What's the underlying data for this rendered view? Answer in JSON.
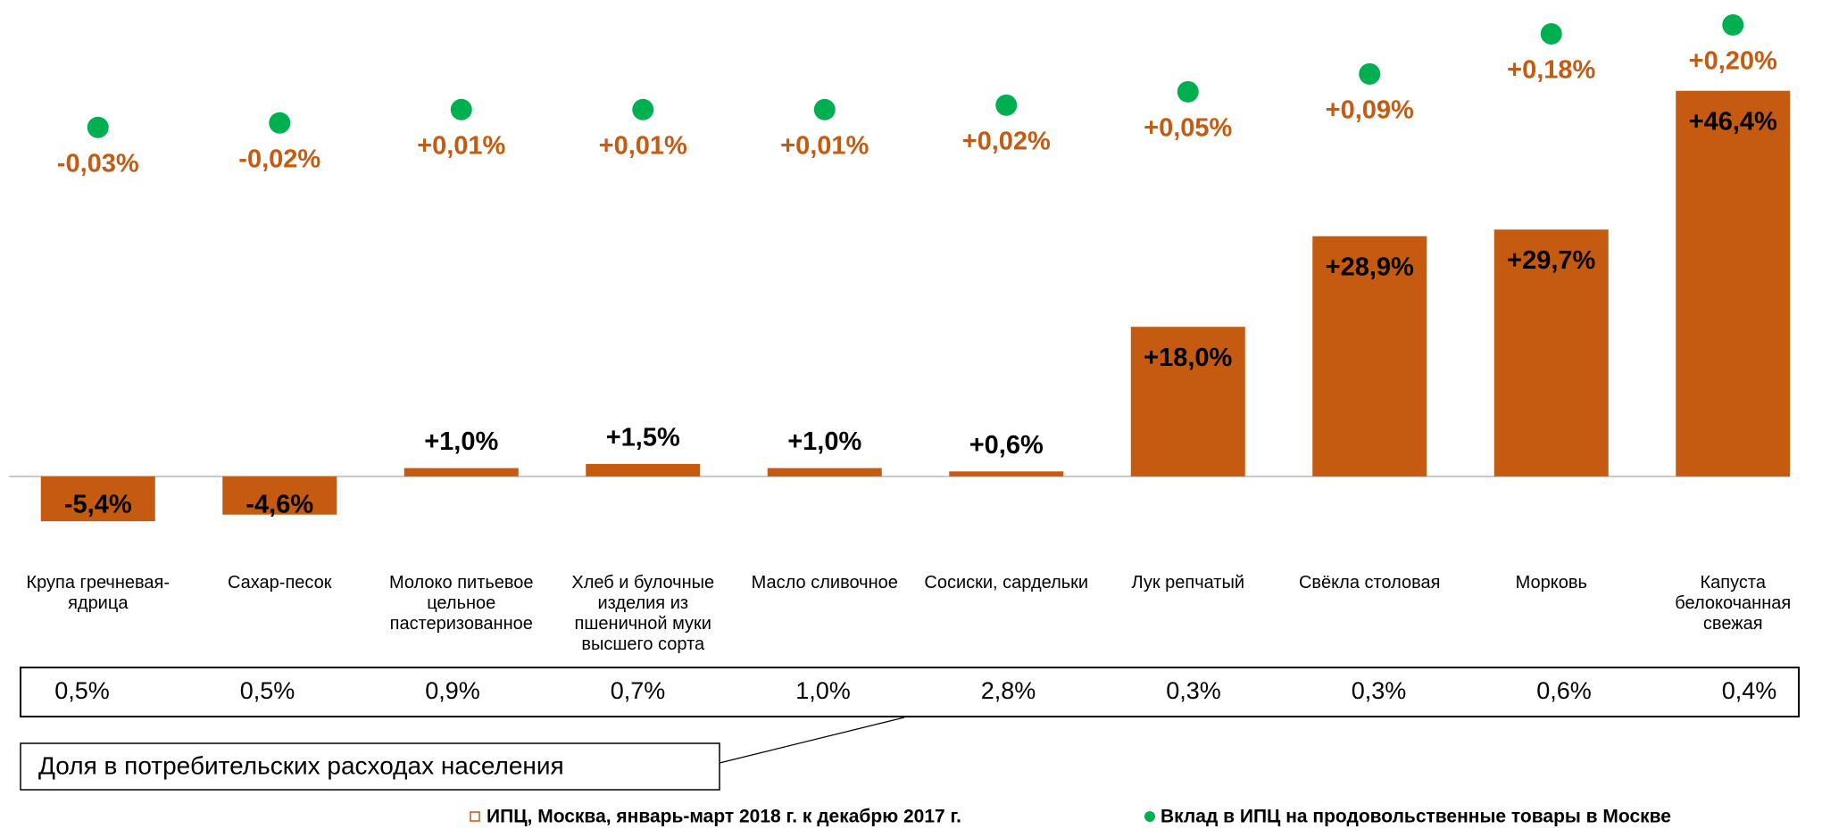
{
  "chart_data": {
    "type": "bar",
    "categories": [
      "Крупа гречневая-ядрица",
      "Сахар-песок",
      "Молоко питьевое цельное пастеризованное",
      "Хлеб и булочные изделия из пшеничной муки высшего сорта",
      "Масло сливочное",
      "Сосиски, сардельки",
      "Лук репчатый",
      "Свёкла столовая",
      "Морковь",
      "Капуста белокочанная свежая"
    ],
    "series": [
      {
        "name": "ИПЦ, Москва, январь-март 2018 г. к декабрю 2017 г.",
        "type": "bar",
        "color": "#c55a11",
        "values": [
          -5.4,
          -4.6,
          1.0,
          1.5,
          1.0,
          0.6,
          18.0,
          28.9,
          29.7,
          46.4
        ],
        "value_labels": [
          "-5,4%",
          "-4,6%",
          "+1,0%",
          "+1,5%",
          "+1,0%",
          "+0,6%",
          "+18,0%",
          "+28,9%",
          "+29,7%",
          "+46,4%"
        ]
      },
      {
        "name": "Вклад в ИПЦ на продовольственные товары в Москве",
        "type": "scatter",
        "color": "#00b050",
        "axis": "y2",
        "values": [
          -0.03,
          -0.02,
          0.01,
          0.01,
          0.01,
          0.02,
          0.05,
          0.09,
          0.18,
          0.2
        ],
        "value_labels": [
          "-0,03%",
          "-0,02%",
          "+0,01%",
          "+0,01%",
          "+0,01%",
          "+0,02%",
          "+0,05%",
          "+0,09%",
          "+0,18%",
          "+0,20%"
        ]
      }
    ],
    "ylim": [
      -10,
      57
    ],
    "y2lim": [
      -1,
      0.25
    ],
    "share_table": {
      "caption": "Доля в потребительских расходах населения",
      "values": [
        "0,5%",
        "0,5%",
        "0,9%",
        "0,7%",
        "1,0%",
        "2,8%",
        "0,3%",
        "0,3%",
        "0,6%",
        "0,4%"
      ]
    }
  }
}
